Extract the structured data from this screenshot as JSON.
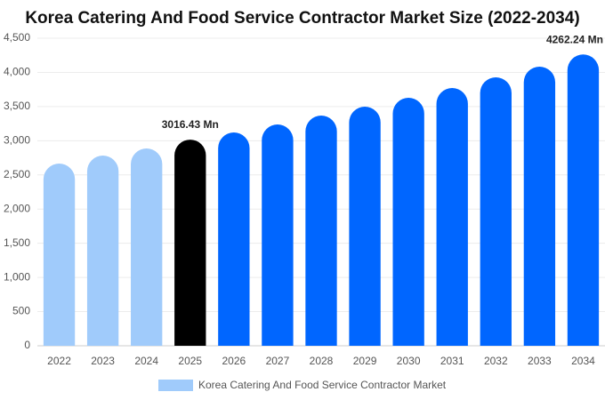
{
  "chart_data": {
    "type": "bar",
    "title": "Korea Catering And Food Service Contractor Market Size (2022-2034)",
    "categories": [
      "2022",
      "2023",
      "2024",
      "2025",
      "2026",
      "2027",
      "2028",
      "2029",
      "2030",
      "2031",
      "2032",
      "2033",
      "2034"
    ],
    "series": [
      {
        "name": "Korea Catering And Food Service Contractor Market",
        "color": "#a0cbfb",
        "values": [
          2666,
          2783,
          2887,
          3016.43,
          3121,
          3238,
          3368,
          3498,
          3628,
          3771,
          3928,
          4084,
          4262.24
        ],
        "bar_colors": [
          "#a0cbfb",
          "#a0cbfb",
          "#a0cbfb",
          "#000000",
          "#0066ff",
          "#0066ff",
          "#0066ff",
          "#0066ff",
          "#0066ff",
          "#0066ff",
          "#0066ff",
          "#0066ff",
          "#0066ff"
        ],
        "value_labels": [
          null,
          null,
          null,
          "3016.43 Mn",
          null,
          null,
          null,
          null,
          null,
          null,
          null,
          null,
          "4262.24 Mn"
        ]
      }
    ],
    "ylim": [
      0,
      4500
    ],
    "yticks": [
      0,
      500,
      {
        "value": 1000,
        "label": "1,000"
      },
      {
        "value": 1500,
        "label": "1,500"
      },
      {
        "value": 2000,
        "label": "2,000"
      },
      {
        "value": 2500,
        "label": "2,500"
      },
      {
        "value": 3000,
        "label": "3,000"
      },
      {
        "value": 3500,
        "label": "3,500"
      },
      {
        "value": 4000,
        "label": "4,000"
      },
      {
        "value": 4500,
        "label": "4,500"
      }
    ],
    "grid": true
  }
}
